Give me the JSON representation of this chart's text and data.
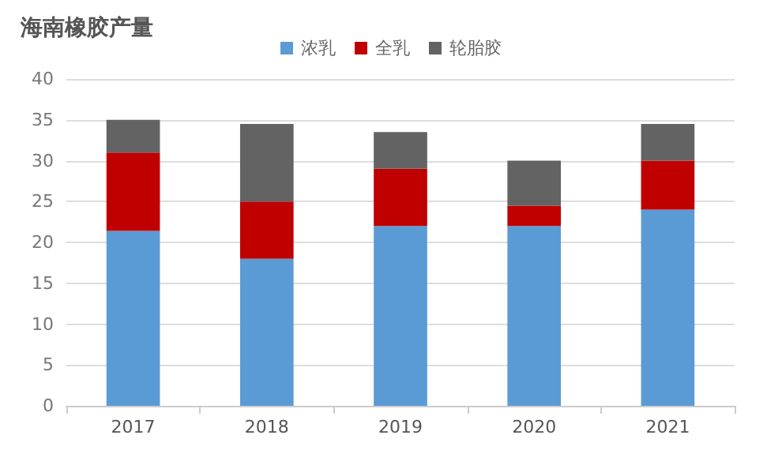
{
  "chart_data": {
    "type": "bar",
    "title": "海南橡胶产量",
    "categories": [
      "2017",
      "2018",
      "2019",
      "2020",
      "2021"
    ],
    "stacked": true,
    "series": [
      {
        "name": "浓乳",
        "color": "#5b9bd5",
        "values": [
          21.4,
          18,
          22,
          22,
          24
        ]
      },
      {
        "name": "全乳",
        "color": "#c00000",
        "values": [
          9.6,
          7,
          7,
          2.5,
          6
        ]
      },
      {
        "name": "轮胎胶",
        "color": "#636363",
        "values": [
          4,
          9.5,
          4.5,
          5.5,
          4.5
        ]
      }
    ],
    "ylim": [
      0,
      40
    ],
    "yticks": [
      0,
      5,
      10,
      15,
      20,
      25,
      30,
      35,
      40
    ],
    "grid": "y",
    "legend": "top"
  }
}
